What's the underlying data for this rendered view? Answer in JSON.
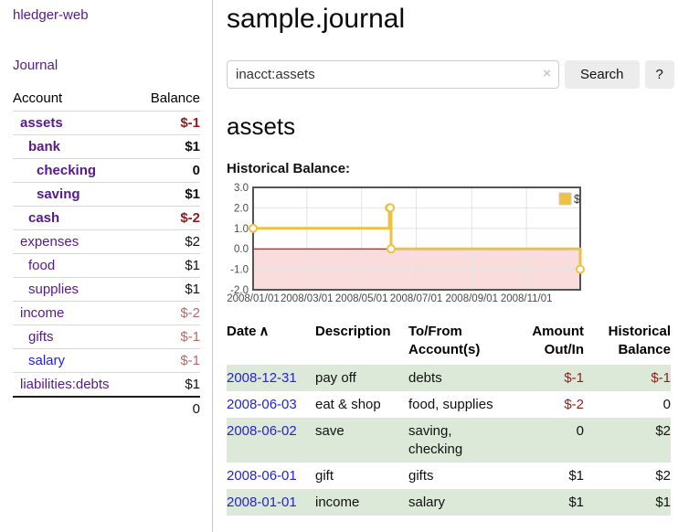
{
  "colors": {
    "link_purple": "#551a8b",
    "link_blue": "#2323d6",
    "negative_strong": "#941a1a",
    "negative_soft": "#bb6666",
    "row_stripe_green": "#dde9d8",
    "button_bg": "#ececec",
    "chart_line_gold": "#edc240",
    "chart_zero_red": "#8b0000",
    "chart_negative_fill": "#f9dcdc",
    "chart_grid": "#e3e3e3",
    "chart_border": "#545454"
  },
  "sidebar": {
    "brand": "hledger-web",
    "journal_link": "Journal",
    "accounts_table": {
      "headers": [
        "Account",
        "Balance"
      ],
      "rows": [
        {
          "name": "assets",
          "balance": "$-1",
          "depth": 1,
          "bold": true,
          "name_color": "purple",
          "balance_color": "neg"
        },
        {
          "name": "bank",
          "balance": "$1",
          "depth": 2,
          "bold": true,
          "name_color": "purple",
          "balance_color": ""
        },
        {
          "name": "checking",
          "balance": "0",
          "depth": 3,
          "bold": true,
          "name_color": "purple",
          "balance_color": ""
        },
        {
          "name": "saving",
          "balance": "$1",
          "depth": 3,
          "bold": true,
          "name_color": "purple",
          "balance_color": ""
        },
        {
          "name": "cash",
          "balance": "$-2",
          "depth": 2,
          "bold": true,
          "name_color": "purple",
          "balance_color": "neg"
        },
        {
          "name": "expenses",
          "balance": "$2",
          "depth": 1,
          "bold": false,
          "name_color": "purple",
          "balance_color": ""
        },
        {
          "name": "food",
          "balance": "$1",
          "depth": 2,
          "bold": false,
          "name_color": "purple",
          "balance_color": ""
        },
        {
          "name": "supplies",
          "balance": "$1",
          "depth": 2,
          "bold": false,
          "name_color": "purple",
          "balance_color": ""
        },
        {
          "name": "income",
          "balance": "$-2",
          "depth": 1,
          "bold": false,
          "name_color": "purple",
          "balance_color": "rose"
        },
        {
          "name": "gifts",
          "balance": "$-1",
          "depth": 2,
          "bold": false,
          "name_color": "purple",
          "balance_color": "rose"
        },
        {
          "name": "salary",
          "balance": "$-1",
          "depth": 2,
          "bold": false,
          "name_color": "blue",
          "balance_color": "rose"
        },
        {
          "name": "liabilities:debts",
          "balance": "$1",
          "depth": 1,
          "bold": false,
          "name_color": "purple",
          "balance_color": ""
        }
      ],
      "total": "0"
    }
  },
  "main": {
    "title": "sample.journal",
    "search": {
      "value": "inacct:assets",
      "clear_icon": "×",
      "button_label": "Search",
      "help_label": "?"
    },
    "account_heading": "assets",
    "chart_label": "Historical Balance:",
    "register": {
      "headers": [
        {
          "label": "Date",
          "icon": "∧"
        },
        {
          "label": "Description"
        },
        {
          "label": "To/From Account(s)"
        },
        {
          "label": "Amount Out/In"
        },
        {
          "label": "Historical Balance"
        }
      ],
      "rows": [
        {
          "date": "2008-12-31",
          "description": "pay off",
          "accounts": "debts",
          "amount": "$-1",
          "amount_negative": true,
          "balance": "$-1",
          "balance_negative": true
        },
        {
          "date": "2008-06-03",
          "description": "eat & shop",
          "accounts": "food, supplies",
          "amount": "$-2",
          "amount_negative": true,
          "balance": "0",
          "balance_negative": false
        },
        {
          "date": "2008-06-02",
          "description": "save",
          "accounts": "saving, checking",
          "amount": "0",
          "amount_negative": false,
          "balance": "$2",
          "balance_negative": false
        },
        {
          "date": "2008-06-01",
          "description": "gift",
          "accounts": "gifts",
          "amount": "$1",
          "amount_negative": false,
          "balance": "$2",
          "balance_negative": false
        },
        {
          "date": "2008-01-01",
          "description": "income",
          "accounts": "salary",
          "amount": "$1",
          "amount_negative": false,
          "balance": "$1",
          "balance_negative": false
        }
      ]
    }
  },
  "chart_data": {
    "type": "line",
    "mode": "steps",
    "title": "Historical Balance",
    "series": [
      {
        "name": "$",
        "color": "#edc240",
        "points": [
          {
            "date": "2008-01-01",
            "value": 1
          },
          {
            "date": "2008-06-01",
            "value": 2
          },
          {
            "date": "2008-06-02",
            "value": 2
          },
          {
            "date": "2008-06-03",
            "value": 0
          },
          {
            "date": "2008-12-31",
            "value": -1
          }
        ]
      }
    ],
    "x_range": [
      "2008-01-01",
      "2008-12-31"
    ],
    "x_ticks": [
      "2008/01/01",
      "2008/03/01",
      "2008/05/01",
      "2008/07/01",
      "2008/09/01",
      "2008/11/01"
    ],
    "ylim": [
      -2,
      3
    ],
    "y_ticks": [
      3,
      2,
      1,
      0,
      -1,
      -2
    ],
    "grid": true,
    "legend_position": "top-right",
    "negative_region_below": 0
  }
}
